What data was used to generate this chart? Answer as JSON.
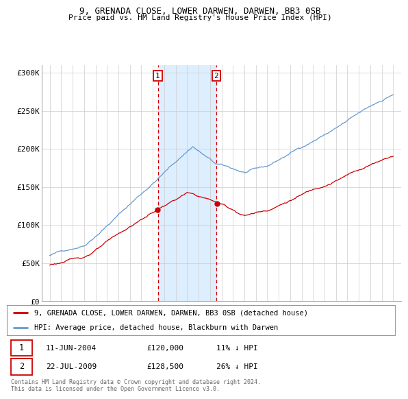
{
  "title1": "9, GRENADA CLOSE, LOWER DARWEN, DARWEN, BB3 0SB",
  "title2": "Price paid vs. HM Land Registry's House Price Index (HPI)",
  "ylabel_ticks": [
    "£0",
    "£50K",
    "£100K",
    "£150K",
    "£200K",
    "£250K",
    "£300K"
  ],
  "ytick_vals": [
    0,
    50000,
    100000,
    150000,
    200000,
    250000,
    300000
  ],
  "ylim": [
    0,
    310000
  ],
  "xlim": [
    1994.3,
    2025.7
  ],
  "sale1_date_num": 2004.44,
  "sale1_price": 120000,
  "sale2_date_num": 2009.55,
  "sale2_price": 128500,
  "legend_line1": "9, GRENADA CLOSE, LOWER DARWEN, DARWEN, BB3 0SB (detached house)",
  "legend_line2": "HPI: Average price, detached house, Blackburn with Darwen",
  "table_row1": [
    "1",
    "11-JUN-2004",
    "£120,000",
    "11% ↓ HPI"
  ],
  "table_row2": [
    "2",
    "22-JUL-2009",
    "£128,500",
    "26% ↓ HPI"
  ],
  "footnote": "Contains HM Land Registry data © Crown copyright and database right 2024.\nThis data is licensed under the Open Government Licence v3.0.",
  "red_color": "#cc0000",
  "blue_color": "#6699cc",
  "shade_color": "#ddeeff",
  "background_color": "#ffffff",
  "grid_color": "#cccccc"
}
